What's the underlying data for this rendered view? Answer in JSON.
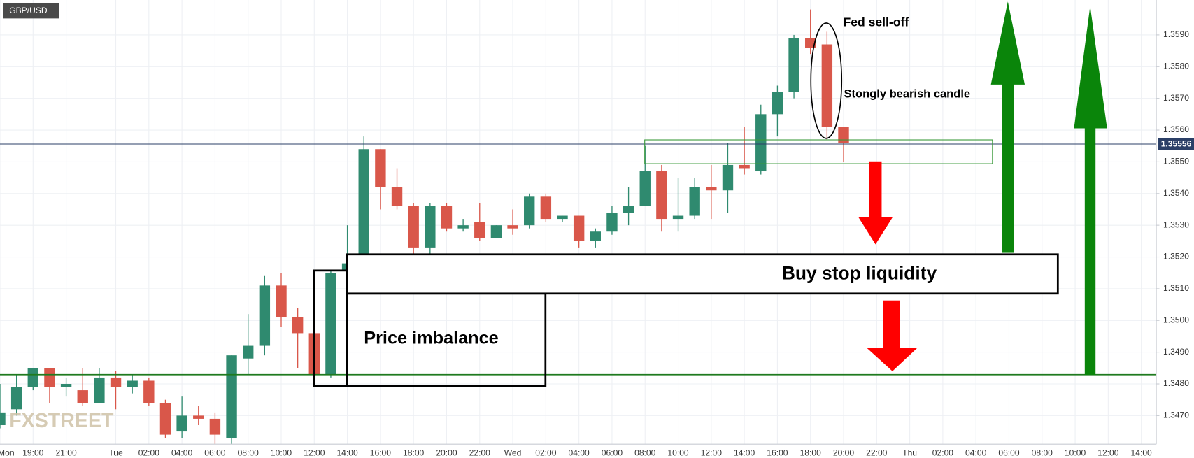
{
  "chart_data": {
    "type": "candlestick",
    "pair": "GBP/USD",
    "watermark": "FXSTREET",
    "annotations": {
      "fed": "Fed sell-off",
      "bearish": "Stongly bearish candle",
      "buy_stop": "Buy stop liquidity",
      "imbalance": "Price imbalance"
    },
    "up_color": "#2f8a6f",
    "down_color": "#d9574a",
    "last_price": 1.35556,
    "last_price_color": "#2b3f67",
    "grid": true,
    "categories": [
      "Mon",
      null,
      "19:00",
      null,
      "21:00",
      null,
      null,
      "Tue",
      null,
      "02:00",
      null,
      "04:00",
      null,
      "06:00",
      null,
      "08:00",
      null,
      "10:00",
      null,
      "12:00",
      null,
      "14:00",
      null,
      "16:00",
      null,
      "18:00",
      null,
      "20:00",
      null,
      "22:00",
      null,
      "Wed",
      null,
      "02:00",
      null,
      "04:00",
      null,
      "06:00",
      null,
      "08:00",
      null,
      "10:00",
      null,
      "12:00",
      null,
      "14:00",
      null,
      "16:00",
      null,
      "18:00",
      null,
      "20:00",
      null,
      "22:00",
      null,
      "Thu",
      null,
      "02:00",
      null,
      "04:00",
      null,
      "06:00",
      null,
      "08:00",
      null,
      "10:00",
      null,
      "12:00",
      null,
      "14:00"
    ],
    "open": [
      1.3467,
      1.3472,
      1.3479,
      1.3485,
      1.3479,
      1.3478,
      1.3474,
      1.3482,
      1.3479,
      1.3481,
      1.3474,
      1.3465,
      1.347,
      1.3469,
      1.3463,
      1.3488,
      1.3492,
      1.3511,
      1.3501,
      1.3496,
      1.3483,
      1.3516,
      1.3519,
      1.3554,
      1.3542,
      1.3536,
      1.3523,
      1.3536,
      1.3529,
      1.3531,
      1.3526,
      1.353,
      1.353,
      1.3539,
      1.3532,
      1.3533,
      1.3525,
      1.3528,
      1.3534,
      1.3536,
      1.3547,
      1.3532,
      1.3533,
      1.3542,
      1.3541,
      1.3549,
      1.3547,
      1.3565,
      1.3572,
      1.3589,
      1.3587,
      1.3561,
      null,
      null,
      null,
      null,
      null,
      null,
      null,
      null,
      null,
      null,
      null,
      null,
      null,
      null,
      null,
      null,
      null,
      null
    ],
    "high": [
      1.348,
      1.3483,
      1.3485,
      1.3485,
      1.3482,
      1.3485,
      1.3485,
      1.3484,
      1.3483,
      1.3482,
      1.3475,
      1.3476,
      1.3473,
      1.3471,
      1.3489,
      1.3502,
      1.3514,
      1.3515,
      1.3504,
      1.3496,
      1.3516,
      1.353,
      1.3558,
      1.3554,
      1.3548,
      1.3537,
      1.3537,
      1.3537,
      1.3532,
      1.3537,
      1.353,
      1.3535,
      1.354,
      1.354,
      1.3533,
      1.3533,
      1.3529,
      1.3536,
      1.3542,
      1.3555,
      1.3549,
      1.3545,
      1.3545,
      1.3549,
      1.3556,
      1.3561,
      1.3568,
      1.3574,
      1.359,
      1.3598,
      1.3591,
      1.3561,
      null,
      null,
      null,
      null,
      null,
      null,
      null,
      null,
      null,
      null,
      null,
      null,
      null,
      null,
      null,
      null,
      null,
      null
    ],
    "low": [
      1.3466,
      1.347,
      1.3478,
      1.3474,
      1.3476,
      1.3473,
      1.3474,
      1.3472,
      1.3477,
      1.3473,
      1.3463,
      1.3463,
      1.3467,
      1.3461,
      1.3461,
      1.3483,
      1.3489,
      1.3498,
      1.3485,
      1.3482,
      1.3482,
      1.3516,
      1.3519,
      1.3535,
      1.3535,
      1.3521,
      1.3521,
      1.3528,
      1.3528,
      1.3525,
      1.3526,
      1.3527,
      1.3529,
      1.3531,
      1.3531,
      1.3523,
      1.3523,
      1.3527,
      1.353,
      1.3536,
      1.3528,
      1.3528,
      1.3532,
      1.3532,
      1.3534,
      1.3546,
      1.3546,
      1.3558,
      1.357,
      1.3584,
      1.3557,
      1.355,
      null,
      null,
      null,
      null,
      null,
      null,
      null,
      null,
      null,
      null,
      null,
      null,
      null,
      null,
      null,
      null,
      null,
      null
    ],
    "close": [
      1.3471,
      1.3479,
      1.3485,
      1.3479,
      1.348,
      1.3474,
      1.3482,
      1.3479,
      1.3481,
      1.3474,
      1.3464,
      1.347,
      1.3469,
      1.3464,
      1.3489,
      1.3492,
      1.3511,
      1.3501,
      1.3496,
      1.3483,
      1.3515,
      1.3518,
      1.3554,
      1.3542,
      1.3536,
      1.3523,
      1.3536,
      1.3529,
      1.353,
      1.3526,
      1.353,
      1.3529,
      1.3539,
      1.3532,
      1.3533,
      1.3525,
      1.3528,
      1.3534,
      1.3536,
      1.3547,
      1.3532,
      1.3533,
      1.3542,
      1.3541,
      1.3549,
      1.3548,
      1.3565,
      1.3572,
      1.3589,
      1.3586,
      1.3561,
      1.3556,
      null,
      null,
      null,
      null,
      null,
      null,
      null,
      null,
      null,
      null,
      null,
      null,
      null,
      null,
      null,
      null,
      null,
      null
    ],
    "ylim": [
      1.3461,
      1.3601
    ],
    "yticks": [
      {
        "value": 1.347,
        "label": "1.3470"
      },
      {
        "value": 1.348,
        "label": "1.3480"
      },
      {
        "value": 1.349,
        "label": "1.3490"
      },
      {
        "value": 1.35,
        "label": "1.3500"
      },
      {
        "value": 1.351,
        "label": "1.3510"
      },
      {
        "value": 1.352,
        "label": "1.3520"
      },
      {
        "value": 1.353,
        "label": "1.3530"
      },
      {
        "value": 1.354,
        "label": "1.3540"
      },
      {
        "value": 1.355,
        "label": "1.3550"
      },
      {
        "value": 1.356,
        "label": "1.3560"
      },
      {
        "value": 1.357,
        "label": "1.3570"
      },
      {
        "value": 1.358,
        "label": "1.3580"
      },
      {
        "value": 1.359,
        "label": "1.3590"
      }
    ]
  }
}
